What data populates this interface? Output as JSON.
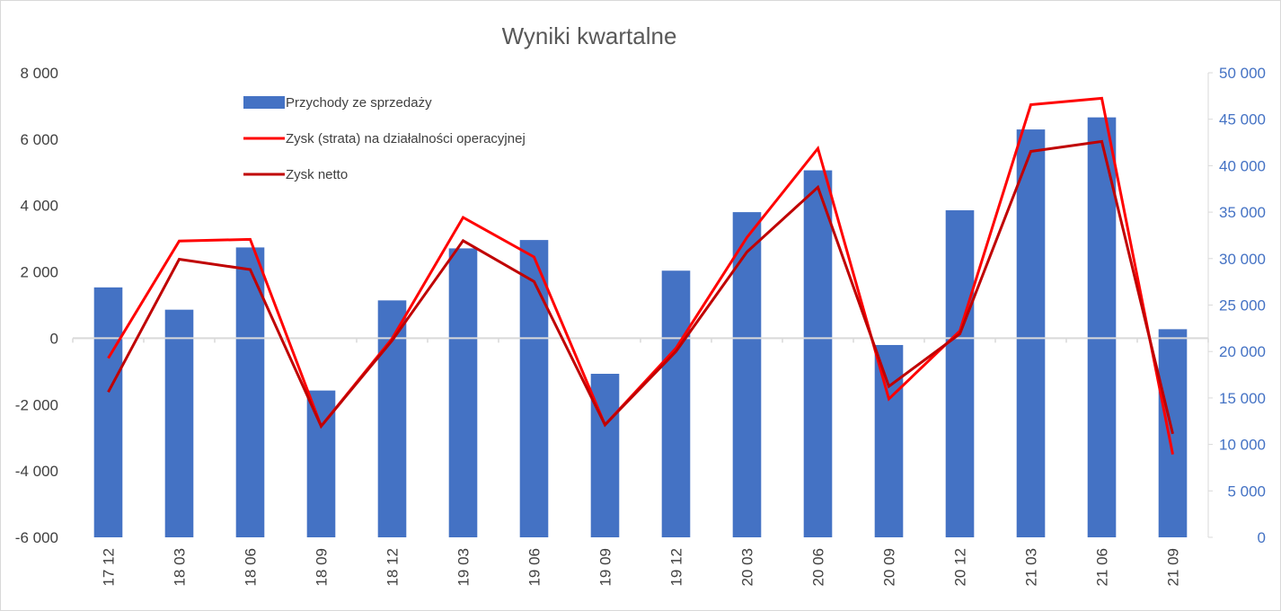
{
  "chart_data": {
    "type": "bar",
    "title": "Wyniki kwartalne",
    "categories": [
      "17 12",
      "18 03",
      "18 06",
      "18 09",
      "18 12",
      "19 03",
      "19 06",
      "19 09",
      "19 12",
      "20 03",
      "20 06",
      "20 09",
      "20 12",
      "21 03",
      "21 06",
      "21 09"
    ],
    "series": [
      {
        "name": "Przychody ze sprzedaży",
        "type": "bar",
        "axis": "right",
        "color": "#4472C4",
        "values": [
          26900,
          24500,
          31200,
          15800,
          25500,
          31100,
          32000,
          17600,
          28700,
          35000,
          39500,
          20700,
          35200,
          43900,
          45200,
          22400
        ]
      },
      {
        "name": "Zysk (strata) na działalności operacyjnej",
        "type": "line",
        "axis": "left",
        "color": "#FF0000",
        "values": [
          -600,
          2930,
          2980,
          -2650,
          -10,
          3640,
          2450,
          -2610,
          -300,
          3040,
          5720,
          -1830,
          220,
          7040,
          7230,
          -3500
        ]
      },
      {
        "name": "Zysk netto",
        "type": "line",
        "axis": "left",
        "color": "#C00000",
        "values": [
          -1620,
          2380,
          2070,
          -2650,
          -70,
          2940,
          1710,
          -2610,
          -400,
          2600,
          4550,
          -1450,
          130,
          5630,
          5930,
          -2880
        ]
      }
    ],
    "y_left": {
      "min": -6000,
      "max": 8000,
      "step": 2000,
      "ticks": [
        "-6 000",
        "-4 000",
        "-2 000",
        "0",
        "2 000",
        "4 000",
        "6 000",
        "8 000"
      ]
    },
    "y_right": {
      "min": 0,
      "max": 50000,
      "step": 5000,
      "ticks": [
        "0",
        "5 000",
        "10 000",
        "15 000",
        "20 000",
        "25 000",
        "30 000",
        "35 000",
        "40 000",
        "45 000",
        "50 000"
      ]
    },
    "grid": false,
    "legend_position": "top-left",
    "zero_line_color": "#d9d9d9"
  }
}
